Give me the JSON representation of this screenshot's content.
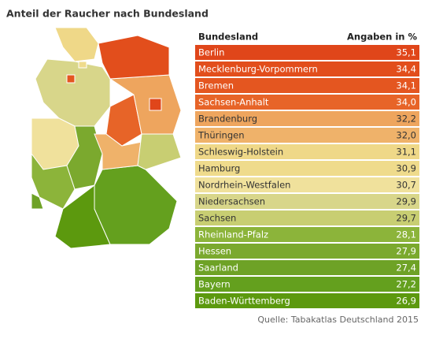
{
  "chart_data": {
    "type": "table",
    "title": "Anteil der Raucher nach Bundesland",
    "column_headers": [
      "Bundesland",
      "Angaben in %"
    ],
    "categories": [
      "Berlin",
      "Mecklenburg-Vorpommern",
      "Bremen",
      "Sachsen-Anhalt",
      "Brandenburg",
      "Thüringen",
      "Schleswig-Holstein",
      "Hamburg",
      "Nordrhein-Westfalen",
      "Niedersachsen",
      "Sachsen",
      "Rheinland-Pfalz",
      "Hessen",
      "Saarland",
      "Bayern",
      "Baden-Württemberg"
    ],
    "values": [
      35.1,
      34.4,
      34.1,
      34.0,
      32.2,
      32.0,
      31.1,
      30.9,
      30.7,
      29.9,
      29.7,
      28.1,
      27.9,
      27.4,
      27.2,
      26.9
    ],
    "value_labels": [
      "35,1",
      "34,4",
      "34,1",
      "34,0",
      "32,2",
      "32,0",
      "31,1",
      "30,9",
      "30,7",
      "29,9",
      "29,7",
      "28,1",
      "27,9",
      "27,4",
      "27,2",
      "26,9"
    ],
    "colors": [
      "#e0461a",
      "#e24e1c",
      "#e45620",
      "#e76428",
      "#eea55e",
      "#efb26a",
      "#efd888",
      "#efdb8c",
      "#f0e19c",
      "#d8d68a",
      "#c8ce72",
      "#8cb43a",
      "#7ba92e",
      "#6ea226",
      "#64a01e",
      "#5c990e"
    ],
    "source": "Quelle: Tabakatlas Deutschland 2015"
  }
}
